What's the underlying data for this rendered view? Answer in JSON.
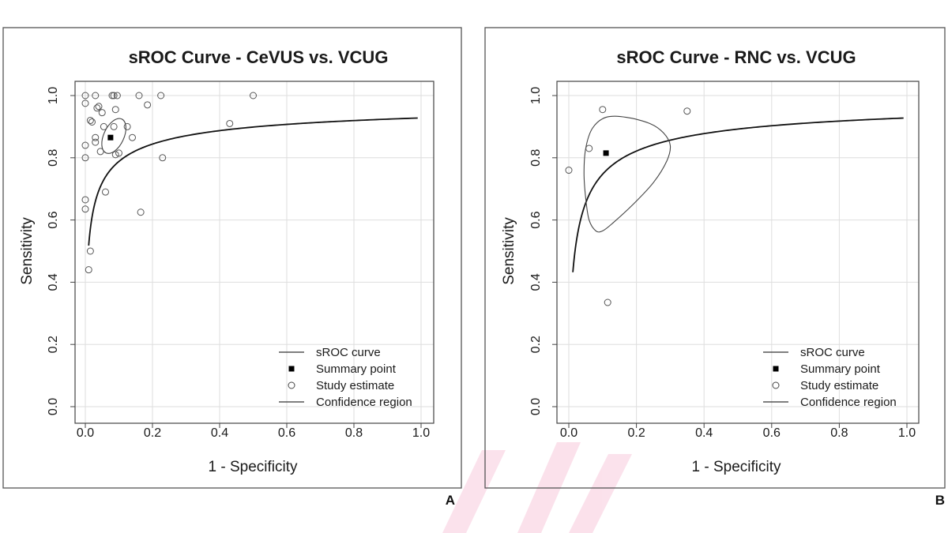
{
  "chart_data": [
    {
      "type": "scatter",
      "panel_label": "A",
      "title": "sROC Curve - CeVUS vs. VCUG",
      "xlabel": "1 - Specificity",
      "ylabel": "Sensitivity",
      "xlim": [
        0,
        1
      ],
      "ylim": [
        0,
        1
      ],
      "xticks": [
        "0.0",
        "0.2",
        "0.4",
        "0.6",
        "0.8",
        "1.0"
      ],
      "yticks": [
        "0.0",
        "0.2",
        "0.4",
        "0.6",
        "0.8",
        "1.0"
      ],
      "grid": true,
      "legend_position": "bottom-right",
      "legend": [
        "sROC curve",
        "Summary point",
        "Study estimate",
        "Confidence region"
      ],
      "sroc_curve": {
        "x_from": 0.01,
        "x_to": 0.99,
        "curve_k": 12.9,
        "curve_b": 0.54
      },
      "summary_point": {
        "x": 0.075,
        "y": 0.865
      },
      "confidence_region": {
        "center_x": 0.085,
        "center_y": 0.87,
        "radius_x": 0.03,
        "radius_y": 0.06,
        "rotation_deg": 25
      },
      "study_estimates": [
        {
          "x": 0.0,
          "y": 1.0
        },
        {
          "x": 0.0,
          "y": 0.975
        },
        {
          "x": 0.03,
          "y": 1.0
        },
        {
          "x": 0.08,
          "y": 1.0
        },
        {
          "x": 0.085,
          "y": 1.0
        },
        {
          "x": 0.095,
          "y": 1.0
        },
        {
          "x": 0.16,
          "y": 1.0
        },
        {
          "x": 0.225,
          "y": 1.0
        },
        {
          "x": 0.5,
          "y": 1.0
        },
        {
          "x": 0.04,
          "y": 0.965
        },
        {
          "x": 0.035,
          "y": 0.96
        },
        {
          "x": 0.09,
          "y": 0.955
        },
        {
          "x": 0.05,
          "y": 0.945
        },
        {
          "x": 0.185,
          "y": 0.97
        },
        {
          "x": 0.015,
          "y": 0.92
        },
        {
          "x": 0.02,
          "y": 0.915
        },
        {
          "x": 0.055,
          "y": 0.9
        },
        {
          "x": 0.085,
          "y": 0.9
        },
        {
          "x": 0.125,
          "y": 0.9
        },
        {
          "x": 0.43,
          "y": 0.91
        },
        {
          "x": 0.03,
          "y": 0.865
        },
        {
          "x": 0.14,
          "y": 0.865
        },
        {
          "x": 0.0,
          "y": 0.84
        },
        {
          "x": 0.03,
          "y": 0.85
        },
        {
          "x": 0.045,
          "y": 0.82
        },
        {
          "x": 0.09,
          "y": 0.81
        },
        {
          "x": 0.1,
          "y": 0.815
        },
        {
          "x": 0.0,
          "y": 0.8
        },
        {
          "x": 0.23,
          "y": 0.8
        },
        {
          "x": 0.06,
          "y": 0.69
        },
        {
          "x": 0.0,
          "y": 0.665
        },
        {
          "x": 0.0,
          "y": 0.635
        },
        {
          "x": 0.165,
          "y": 0.625
        },
        {
          "x": 0.015,
          "y": 0.5
        },
        {
          "x": 0.01,
          "y": 0.44
        }
      ]
    },
    {
      "type": "scatter",
      "panel_label": "B",
      "title": "sROC Curve - RNC vs. VCUG",
      "xlabel": "1 - Specificity",
      "ylabel": "Sensitivity",
      "xlim": [
        0,
        1
      ],
      "ylim": [
        0,
        1
      ],
      "xticks": [
        "0.0",
        "0.2",
        "0.4",
        "0.6",
        "0.8",
        "1.0"
      ],
      "yticks": [
        "0.0",
        "0.2",
        "0.4",
        "0.6",
        "0.8",
        "1.0"
      ],
      "grid": true,
      "legend_position": "bottom-right",
      "legend": [
        "sROC curve",
        "Summary point",
        "Study estimate",
        "Confidence region"
      ],
      "sroc_curve": {
        "x_from": 0.012,
        "x_to": 0.99,
        "curve_k": 12.9,
        "curve_b": 0.64
      },
      "summary_point": {
        "x": 0.11,
        "y": 0.815
      },
      "confidence_region": {
        "points": [
          [
            0.06,
            0.6
          ],
          [
            0.05,
            0.67
          ],
          [
            0.045,
            0.75
          ],
          [
            0.05,
            0.83
          ],
          [
            0.07,
            0.895
          ],
          [
            0.11,
            0.93
          ],
          [
            0.17,
            0.93
          ],
          [
            0.24,
            0.91
          ],
          [
            0.28,
            0.88
          ],
          [
            0.3,
            0.84
          ],
          [
            0.29,
            0.79
          ],
          [
            0.25,
            0.72
          ],
          [
            0.19,
            0.65
          ],
          [
            0.13,
            0.59
          ],
          [
            0.1,
            0.565
          ],
          [
            0.08,
            0.565
          ]
        ]
      },
      "study_estimates": [
        {
          "x": 0.0,
          "y": 0.76
        },
        {
          "x": 0.06,
          "y": 0.83
        },
        {
          "x": 0.1,
          "y": 0.955
        },
        {
          "x": 0.35,
          "y": 0.95
        },
        {
          "x": 0.115,
          "y": 0.335
        }
      ]
    }
  ]
}
